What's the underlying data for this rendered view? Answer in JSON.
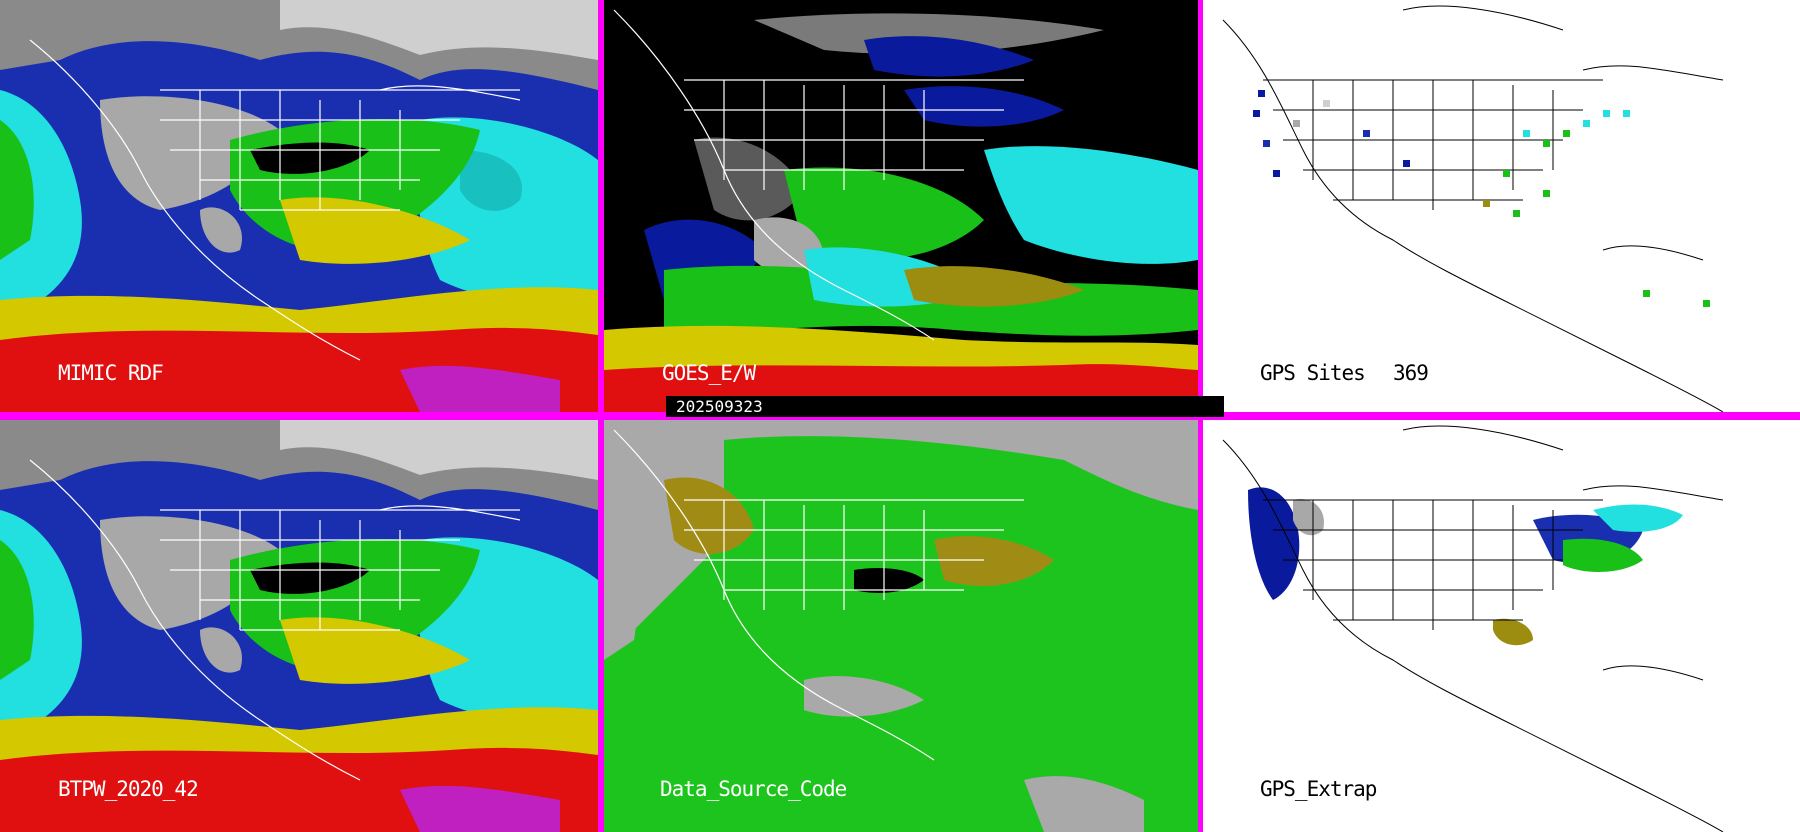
{
  "panels": {
    "top_left": {
      "label": "MIMIC RDF"
    },
    "top_middle": {
      "label": "GOES_E/W"
    },
    "top_right": {
      "label": "GPS Sites",
      "count": "369"
    },
    "bottom_left": {
      "label": "BTPW_2020_42"
    },
    "bottom_middle": {
      "label": "Data_Source_Code"
    },
    "bottom_right": {
      "label": "GPS_Extrap"
    }
  },
  "timestamp": "202509323",
  "colors": {
    "divider": "#ff00ff",
    "tpw_blue": "#0a1a9c",
    "tpw_cyan": "#22e0e0",
    "tpw_green": "#18c018",
    "tpw_yellow": "#d4c800",
    "tpw_red": "#e01010",
    "tpw_magenta": "#c020c0",
    "source_gray": "#a9a9a9",
    "source_green": "#1ec41e",
    "source_olive": "#a08c14"
  }
}
